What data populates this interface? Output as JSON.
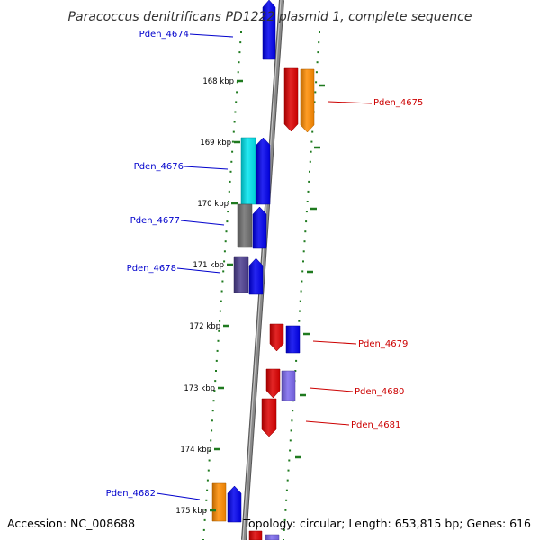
{
  "title": "Paracoccus denitrificans PD1222 plasmid 1, complete sequence",
  "accession": "Accession: NC_008688",
  "topology": "Topology: circular; Length: 653,815 bp; Genes: 616",
  "colors": {
    "backbone": "#8a8a8a",
    "tick": "#1f7a1f",
    "label_forward": "#0000cc",
    "label_reverse": "#cc0000",
    "leader_forward": "#0000cc",
    "leader_reverse": "#cc0000"
  },
  "ticks": [
    {
      "label": "168 kbp"
    },
    {
      "label": "169 kbp"
    },
    {
      "label": "170 kbp"
    },
    {
      "label": "171 kbp"
    },
    {
      "label": "172 kbp"
    },
    {
      "label": "173 kbp"
    },
    {
      "label": "174 kbp"
    },
    {
      "label": "175 kbp"
    }
  ],
  "gene_labels": [
    {
      "text": "Pden_4674",
      "strand": "forward"
    },
    {
      "text": "Pden_4675",
      "strand": "reverse"
    },
    {
      "text": "Pden_4676",
      "strand": "forward"
    },
    {
      "text": "Pden_4677",
      "strand": "forward"
    },
    {
      "text": "Pden_4678",
      "strand": "forward"
    },
    {
      "text": "Pden_4679",
      "strand": "reverse"
    },
    {
      "text": "Pden_4680",
      "strand": "reverse"
    },
    {
      "text": "Pden_4681",
      "strand": "reverse"
    },
    {
      "text": "Pden_4682",
      "strand": "forward"
    }
  ],
  "features": [
    {
      "name": "feature-1",
      "color": "#0000ee",
      "direction": "up"
    },
    {
      "name": "feature-2",
      "color": "#dd0000",
      "direction": "down"
    },
    {
      "name": "feature-3",
      "color": "#ff8c00",
      "direction": "down"
    },
    {
      "name": "feature-4",
      "color": "#00e5ee",
      "direction": "none"
    },
    {
      "name": "feature-5",
      "color": "#0000ee",
      "direction": "up"
    },
    {
      "name": "feature-6",
      "color": "#6e6e6e",
      "direction": "none"
    },
    {
      "name": "feature-7",
      "color": "#0000ee",
      "direction": "up"
    },
    {
      "name": "feature-8",
      "color": "#4b3d8f",
      "direction": "none"
    },
    {
      "name": "feature-9",
      "color": "#0000ee",
      "direction": "up"
    },
    {
      "name": "feature-10",
      "color": "#dd0000",
      "direction": "down"
    },
    {
      "name": "feature-11",
      "color": "#0000ee",
      "direction": "none"
    },
    {
      "name": "feature-12",
      "color": "#dd0000",
      "direction": "down"
    },
    {
      "name": "feature-13",
      "color": "#7b68ee",
      "direction": "none"
    },
    {
      "name": "feature-14",
      "color": "#dd0000",
      "direction": "down"
    },
    {
      "name": "feature-15",
      "color": "#ff8c00",
      "direction": "none"
    },
    {
      "name": "feature-16",
      "color": "#0000ee",
      "direction": "up"
    },
    {
      "name": "feature-17",
      "color": "#dd0000",
      "direction": "none"
    },
    {
      "name": "feature-18",
      "color": "#7b68ee",
      "direction": "none"
    }
  ]
}
